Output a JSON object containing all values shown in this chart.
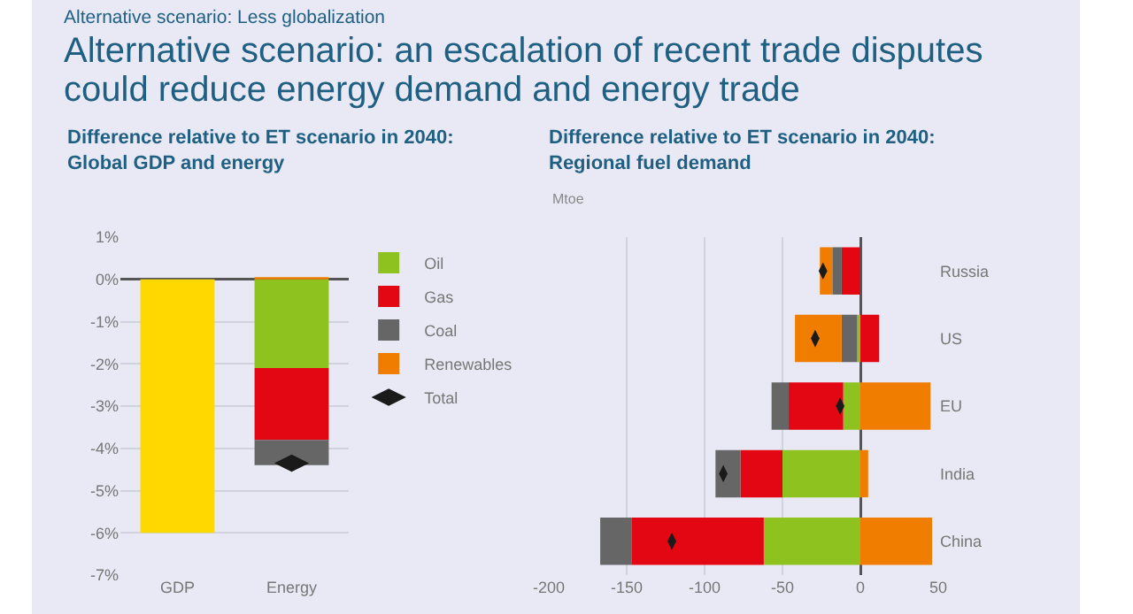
{
  "chart_data": [
    {
      "type": "other",
      "subtitle": "Alternative scenario: Less globalization",
      "title": "Alternative scenario: an escalation of recent trade disputes could reduce energy demand and energy trade"
    },
    {
      "type": "bar",
      "title": "Difference relative to ET scenario in 2040:\nGlobal GDP and energy",
      "categories": [
        "GDP",
        "Energy"
      ],
      "stacked": true,
      "series": [
        {
          "color": "#ffd800",
          "values": [
            -6.0,
            null
          ]
        },
        {
          "name": "Oil",
          "color": "#8dc21f",
          "values": [
            null,
            -2.1
          ]
        },
        {
          "name": "Gas",
          "color": "#e30613",
          "values": [
            null,
            -1.7
          ]
        },
        {
          "name": "Coal",
          "color": "#666666",
          "values": [
            null,
            -0.6
          ]
        },
        {
          "name": "Renewables",
          "color": "#f07d00",
          "values": [
            null,
            0.05
          ]
        },
        {
          "name": "Total",
          "type": "scatter",
          "color": "#1a1a1a",
          "x": [
            "GDP",
            "Energy"
          ],
          "values": [
            null,
            -4.35
          ]
        }
      ],
      "ylim": [
        -7,
        1
      ],
      "yticks": [
        {
          "value": 1,
          "label": "1%"
        },
        {
          "value": 0,
          "label": "0%"
        },
        {
          "value": -1,
          "label": "-1%"
        },
        {
          "value": -2,
          "label": "-2%"
        },
        {
          "value": -3,
          "label": "-3%"
        },
        {
          "value": -4,
          "label": "-4%"
        },
        {
          "value": -5,
          "label": "-5%"
        },
        {
          "value": -6,
          "label": "-6%"
        },
        {
          "value": -7,
          "label": "-7%"
        }
      ],
      "grid": "y",
      "legend": "right"
    },
    {
      "type": "bar",
      "orientation": "horizontal",
      "stacked": true,
      "title": "Difference relative to ET scenario in 2040:\nRegional fuel demand",
      "annotations": [
        "Mtoe"
      ],
      "categories": [
        "Russia",
        "US",
        "EU",
        "India",
        "China"
      ],
      "series": [
        {
          "color": "#8dc21f",
          "values": [
            0,
            -2,
            -11,
            -50,
            -62
          ]
        },
        {
          "color": "#e30613",
          "values": [
            -12,
            12,
            -35,
            -27,
            -85
          ]
        },
        {
          "color": "#666666",
          "values": [
            -6,
            -10,
            -11,
            -16,
            -20
          ]
        },
        {
          "color": "#f07d00",
          "values": [
            -8,
            -30,
            45,
            5,
            46
          ]
        },
        {
          "type": "scatter",
          "color": "#1a1a1a",
          "x": [
            "Russia",
            "US",
            "EU",
            "India",
            "China"
          ],
          "values": [
            -24,
            -29,
            -13,
            -88,
            -121
          ]
        }
      ],
      "xlim": [
        -200,
        50
      ],
      "xticks": [
        -200,
        -150,
        -100,
        -50,
        0,
        50
      ],
      "grid": "x"
    }
  ]
}
